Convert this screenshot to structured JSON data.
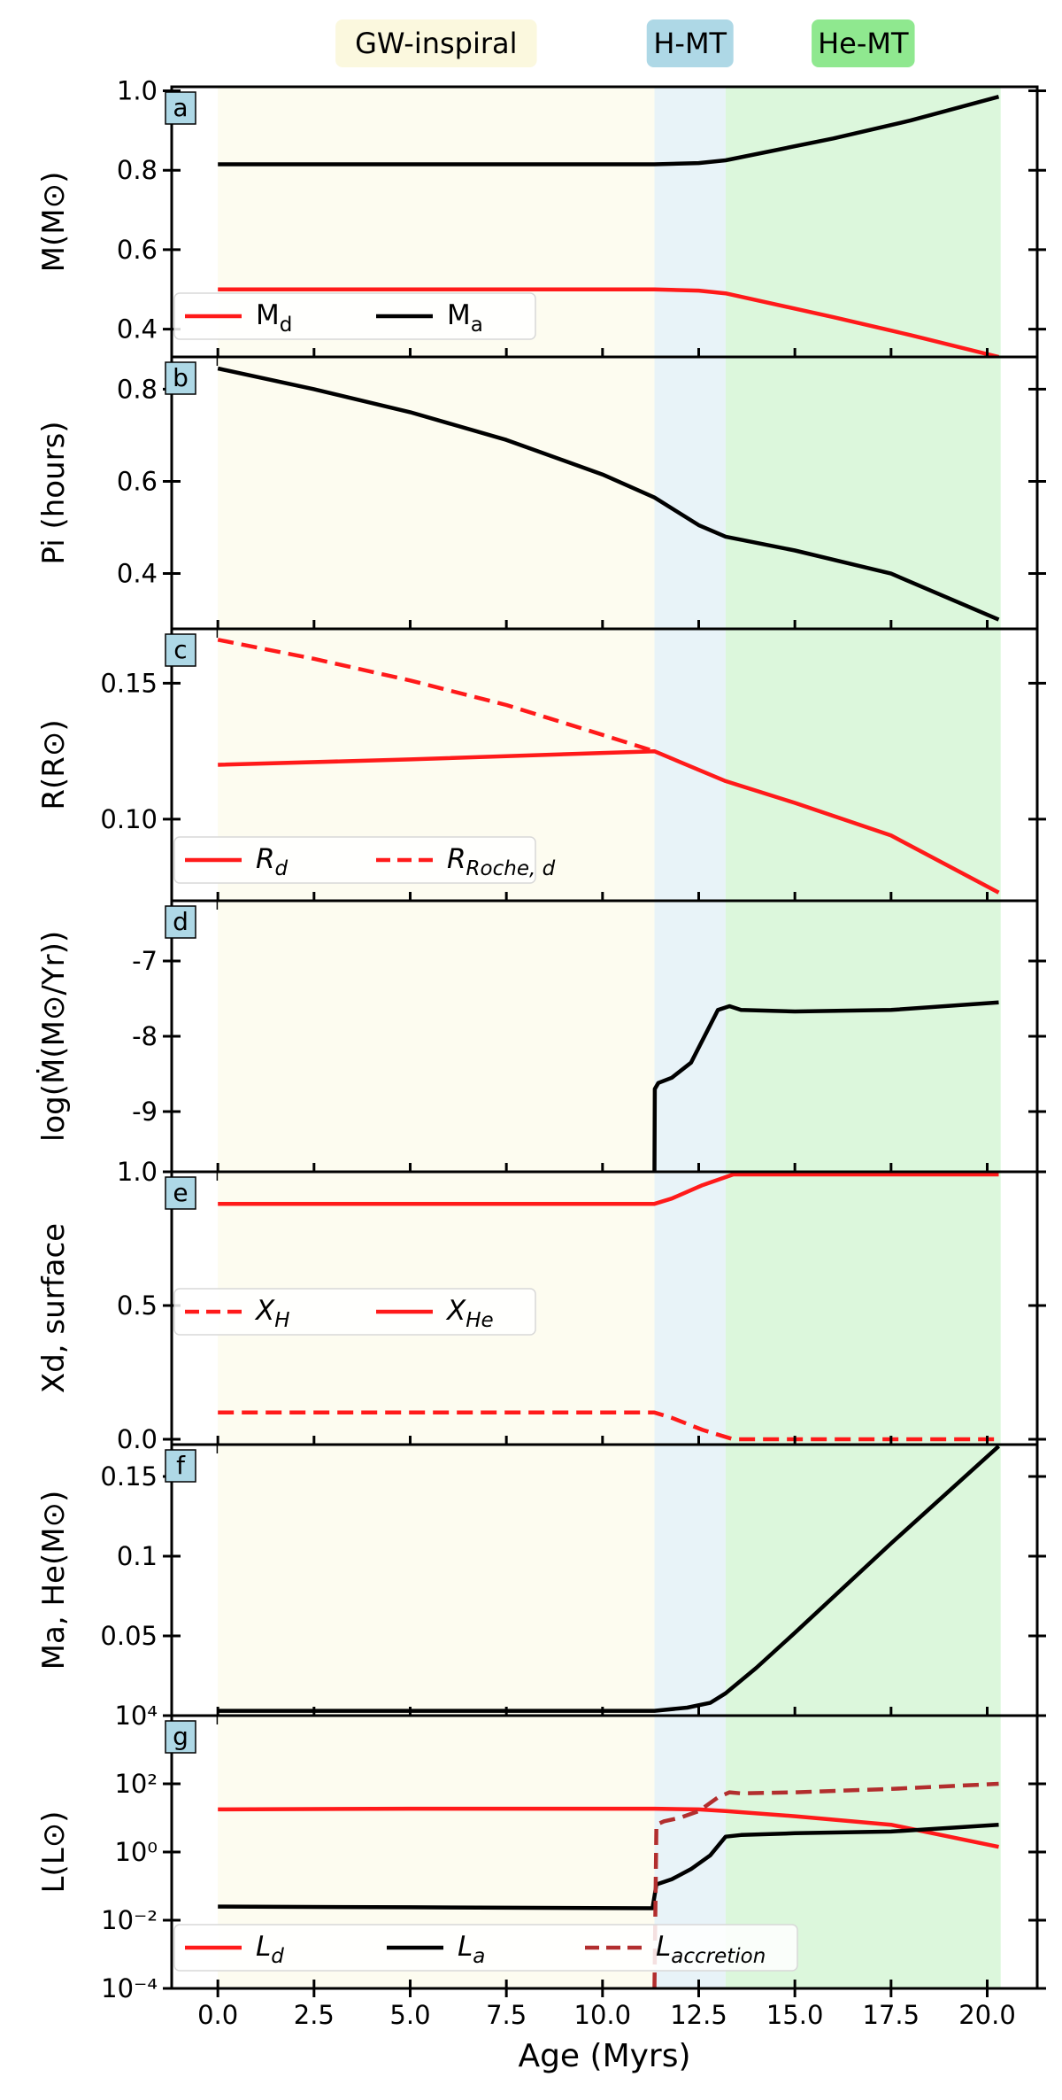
{
  "colors": {
    "gw": "#fdfcf0",
    "hmt": "#e8f3f8",
    "hemt": "#dcf7dc",
    "gw_label": "#fbf8de",
    "hmt_label": "#aed8e6",
    "hemt_label": "#8fe88f",
    "letter_box": "#aed8e6",
    "red": "#ff1a1a",
    "black": "#000000",
    "brown": "#b22e2e"
  },
  "chart_data": {
    "type": "line",
    "shared_x": {
      "label": "Age (Myrs)",
      "range": [
        -1.2,
        21.3
      ],
      "ticks": [
        0,
        2.5,
        5,
        7.5,
        10,
        12.5,
        15,
        17.5,
        20
      ],
      "tick_labels": [
        "0.0",
        "2.5",
        "5.0",
        "7.5",
        "10.0",
        "12.5",
        "15.0",
        "17.5",
        "20.0"
      ]
    },
    "phases": [
      {
        "name": "GW-inspiral",
        "from": 0,
        "to": 11.35,
        "color_key": "gw",
        "label_color_key": "gw_label"
      },
      {
        "name": "H-MT",
        "from": 11.35,
        "to": 13.2,
        "color_key": "hmt",
        "label_color_key": "hmt_label"
      },
      {
        "name": "He-MT",
        "from": 13.2,
        "to": 20.35,
        "color_key": "hemt",
        "label_color_key": "hemt_label"
      }
    ],
    "panels": [
      {
        "letter": "a",
        "ylabel": "M(M⊙)",
        "ylim": [
          0.33,
          1.01
        ],
        "yticks": [
          0.4,
          0.6,
          0.8,
          1.0
        ],
        "ytick_labels": [
          "0.4",
          "0.6",
          "0.8",
          "1.0"
        ],
        "legend": {
          "cols": 2,
          "entries": [
            {
              "label": "Md",
              "color_key": "red",
              "dash": "solid"
            },
            {
              "label": "Ma",
              "color_key": "black",
              "dash": "solid"
            }
          ]
        },
        "series": [
          {
            "name": "Md",
            "color_key": "red",
            "dash": "solid",
            "x": [
              0,
              5,
              10,
              11.35,
              12.5,
              13.2,
              16,
              18,
              20.3
            ],
            "y": [
              0.5,
              0.5,
              0.5,
              0.5,
              0.497,
              0.49,
              0.43,
              0.385,
              0.33
            ]
          },
          {
            "name": "Ma",
            "color_key": "black",
            "dash": "solid",
            "x": [
              0,
              5,
              10,
              11.35,
              12.5,
              13.2,
              16,
              18,
              20.3
            ],
            "y": [
              0.815,
              0.815,
              0.815,
              0.815,
              0.818,
              0.825,
              0.88,
              0.925,
              0.985
            ]
          }
        ]
      },
      {
        "letter": "b",
        "ylabel": "Pi (hours)",
        "ylim": [
          0.28,
          0.87
        ],
        "yticks": [
          0.4,
          0.6,
          0.8
        ],
        "ytick_labels": [
          "0.4",
          "0.6",
          "0.8"
        ],
        "legend": null,
        "series": [
          {
            "name": "Pi",
            "color_key": "black",
            "dash": "solid",
            "x": [
              0,
              2.5,
              5,
              7.5,
              10,
              11.35,
              12.5,
              13.2,
              15,
              17.5,
              20.3
            ],
            "y": [
              0.845,
              0.8,
              0.75,
              0.69,
              0.615,
              0.565,
              0.505,
              0.48,
              0.45,
              0.4,
              0.3
            ]
          }
        ]
      },
      {
        "letter": "c",
        "ylabel": "R(R⊙)",
        "ylim": [
          0.07,
          0.17
        ],
        "yticks": [
          0.1,
          0.15
        ],
        "ytick_labels": [
          "0.10",
          "0.15"
        ],
        "legend": {
          "cols": 2,
          "entries": [
            {
              "label": "Rd",
              "color_key": "red",
              "dash": "solid"
            },
            {
              "label": "RRoche,d",
              "color_key": "red",
              "dash": "dashed"
            }
          ]
        },
        "series": [
          {
            "name": "Rd",
            "color_key": "red",
            "dash": "solid",
            "x": [
              0,
              5,
              11.35,
              13.2,
              15,
              17.5,
              20.3
            ],
            "y": [
              0.12,
              0.122,
              0.125,
              0.114,
              0.106,
              0.094,
              0.073
            ]
          },
          {
            "name": "RRoche,d",
            "color_key": "red",
            "dash": "dashed",
            "x": [
              0,
              2.5,
              5,
              7.5,
              10,
              11.35
            ],
            "y": [
              0.166,
              0.159,
              0.151,
              0.142,
              0.131,
              0.125
            ]
          }
        ]
      },
      {
        "letter": "d",
        "ylabel": "log(Ṁ(M⊙/Yr))",
        "ylim": [
          -9.8,
          -6.2
        ],
        "yticks": [
          -9,
          -8,
          -7
        ],
        "ytick_labels": [
          "-9",
          "-8",
          "-7"
        ],
        "legend": null,
        "series": [
          {
            "name": "log Mdot",
            "color_key": "black",
            "dash": "solid",
            "x": [
              11.35,
              11.36,
              11.45,
              11.8,
              12.3,
              12.7,
              13.0,
              13.3,
              13.6,
              15,
              17.5,
              20.3
            ],
            "y": [
              -9.8,
              -8.7,
              -8.62,
              -8.55,
              -8.35,
              -7.95,
              -7.65,
              -7.6,
              -7.65,
              -7.67,
              -7.65,
              -7.55
            ]
          }
        ]
      },
      {
        "letter": "e",
        "ylabel": "Xd, surface",
        "ylim": [
          -0.02,
          1.0
        ],
        "yticks": [
          0.0,
          0.5,
          1.0
        ],
        "ytick_labels": [
          "0.0",
          "0.5",
          "1.0"
        ],
        "legend": {
          "cols": 2,
          "entries": [
            {
              "label": "XH",
              "color_key": "red",
              "dash": "dashed"
            },
            {
              "label": "XHe",
              "color_key": "red",
              "dash": "solid"
            }
          ]
        },
        "series": [
          {
            "name": "XHe",
            "color_key": "red",
            "dash": "solid",
            "x": [
              0,
              11.35,
              11.8,
              12.6,
              13.4,
              20.3
            ],
            "y": [
              0.88,
              0.88,
              0.9,
              0.95,
              0.99,
              0.99
            ]
          },
          {
            "name": "XH",
            "color_key": "red",
            "dash": "dashed",
            "x": [
              0,
              11.35,
              11.8,
              12.6,
              13.4,
              20.3
            ],
            "y": [
              0.1,
              0.1,
              0.08,
              0.035,
              0.0,
              0.0
            ]
          }
        ]
      },
      {
        "letter": "f",
        "ylabel": "Ma, He(M⊙)",
        "ylim": [
          0.0,
          0.17
        ],
        "yticks": [
          0.05,
          0.1,
          0.15
        ],
        "ytick_labels": [
          "0.05",
          "0.1",
          "0.15"
        ],
        "legend": null,
        "series": [
          {
            "name": "Ma,He",
            "color_key": "black",
            "dash": "solid",
            "x": [
              0,
              11.35,
              12.2,
              12.8,
              13.2,
              14,
              15,
              17.5,
              20.3
            ],
            "y": [
              0.003,
              0.003,
              0.005,
              0.008,
              0.014,
              0.03,
              0.052,
              0.108,
              0.169
            ]
          }
        ]
      },
      {
        "letter": "g",
        "ylabel": "L(L⊙)",
        "ylim": [
          -4,
          4
        ],
        "yticks": [
          -4,
          -2,
          0,
          2,
          4
        ],
        "ytick_labels": [
          "10⁻⁴",
          "10⁻²",
          "10⁰",
          "10²",
          "10⁴"
        ],
        "legend": {
          "cols": 3,
          "entries": [
            {
              "label": "Ld",
              "color_key": "red",
              "dash": "solid"
            },
            {
              "label": "La",
              "color_key": "black",
              "dash": "solid"
            },
            {
              "label": "Laccretion",
              "color_key": "brown",
              "dash": "dashed"
            }
          ]
        },
        "series": [
          {
            "name": "Ld",
            "color_key": "red",
            "dash": "solid",
            "x": [
              0,
              5,
              11.35,
              12.5,
              13.2,
              15,
              17.5,
              20.3
            ],
            "y": [
              1.25,
              1.27,
              1.27,
              1.25,
              1.2,
              1.05,
              0.8,
              0.15
            ]
          },
          {
            "name": "La",
            "color_key": "black",
            "dash": "solid",
            "x": [
              0,
              5,
              11.3,
              11.4,
              11.8,
              12.3,
              12.8,
              13.2,
              13.6,
              15,
              17.5,
              20.3
            ],
            "y": [
              -1.6,
              -1.62,
              -1.65,
              -0.95,
              -0.8,
              -0.5,
              -0.1,
              0.45,
              0.5,
              0.55,
              0.6,
              0.8
            ]
          },
          {
            "name": "Laccretion",
            "color_key": "brown",
            "dash": "dashed",
            "x": [
              11.35,
              11.4,
              11.6,
              12.0,
              12.5,
              13.0,
              13.3,
              13.6,
              15,
              17.5,
              20.3
            ],
            "y": [
              -4.0,
              0.8,
              0.9,
              1.0,
              1.2,
              1.6,
              1.75,
              1.72,
              1.75,
              1.85,
              2.0
            ]
          }
        ]
      }
    ]
  }
}
